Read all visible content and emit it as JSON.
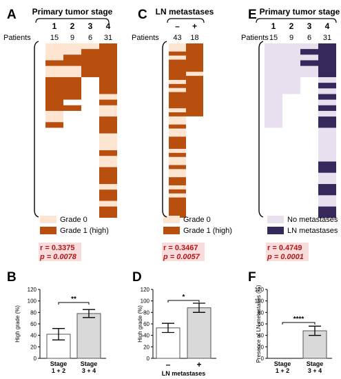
{
  "colors": {
    "grade0": "#fde5d2",
    "grade1": "#b84f0f",
    "nomet": "#e9e0ef",
    "met": "#37285c",
    "stat_bg": "#f8dcdc",
    "stat_text": "#b01818",
    "bar_light": "#d9d9d9"
  },
  "patients_label": "Patients",
  "chart_data": [
    {
      "type": "heatmap",
      "panel": "A",
      "title": "Primary tumor stage",
      "columns": [
        "1",
        "2",
        "3",
        "4"
      ],
      "counts": [
        "15",
        "9",
        "6",
        "31"
      ],
      "n_rows": 31,
      "high_fill_runs": [
        [
          [
            3,
            4
          ],
          [
            6,
            12
          ],
          [
            14,
            15
          ]
        ],
        [
          [
            2,
            4
          ],
          [
            6,
            10
          ],
          [
            11,
            12
          ]
        ],
        [
          [
            1,
            6
          ]
        ],
        [
          [
            0,
            9
          ],
          [
            10,
            11
          ],
          [
            13,
            16
          ],
          [
            19,
            20
          ],
          [
            22,
            25
          ],
          [
            26,
            28
          ],
          [
            29,
            31
          ]
        ]
      ],
      "legend": [
        "Grade 0",
        "Grade 1 (high)"
      ],
      "r": "r = 0.3375",
      "p": "p = 0.0078"
    },
    {
      "type": "heatmap",
      "panel": "C",
      "title": "LN metastases",
      "columns": [
        "–",
        "+"
      ],
      "counts": [
        "43",
        "18"
      ],
      "n_rows": 43,
      "high_fill_runs": [
        [
          [
            2,
            3
          ],
          [
            4,
            9
          ],
          [
            10,
            11
          ],
          [
            12,
            16
          ],
          [
            17,
            18
          ],
          [
            20,
            21
          ],
          [
            23,
            26
          ],
          [
            27,
            28
          ],
          [
            30,
            31
          ],
          [
            33,
            35
          ],
          [
            36,
            37
          ],
          [
            38,
            43
          ]
        ],
        [
          [
            0,
            7
          ],
          [
            8,
            18
          ]
        ]
      ],
      "legend": [
        "Grade 0",
        "Grade 1 (high)"
      ],
      "r": "r = 0.3467",
      "p": "p = 0.0057"
    },
    {
      "type": "heatmap",
      "panel": "E",
      "title": "Primary tumor stage",
      "columns": [
        "1",
        "2",
        "3",
        "4"
      ],
      "counts": [
        "15",
        "9",
        "6",
        "31"
      ],
      "n_rows": 31,
      "high_fill_runs": [
        [],
        [],
        [
          [
            1,
            2
          ],
          [
            3,
            4
          ]
        ],
        [
          [
            0,
            6
          ],
          [
            7,
            8
          ],
          [
            9,
            10
          ],
          [
            11,
            12
          ],
          [
            13,
            15
          ],
          [
            21,
            23
          ],
          [
            25,
            27
          ],
          [
            29,
            31
          ]
        ]
      ],
      "legend": [
        "No metastases",
        "LN metastases"
      ],
      "r": "r = 0.4749",
      "p": "p = 0.0001"
    },
    {
      "type": "bar",
      "panel": "B",
      "categories": [
        "Stage\n1 + 2",
        "Stage\n3 + 4"
      ],
      "values": [
        42,
        78
      ],
      "errors": [
        10,
        7
      ],
      "ylabel": "High grade (%)",
      "ylim": [
        0,
        120
      ],
      "yticks": [
        0,
        20,
        40,
        60,
        80,
        100,
        120
      ],
      "significance": "**"
    },
    {
      "type": "bar",
      "panel": "D",
      "categories": [
        "–",
        "+"
      ],
      "values": [
        53,
        88
      ],
      "errors": [
        8,
        8
      ],
      "ylabel": "High grade (%)",
      "xlabel": "LN metastases",
      "ylim": [
        0,
        120
      ],
      "yticks": [
        0,
        20,
        40,
        60,
        80,
        100,
        120
      ],
      "significance": "*"
    },
    {
      "type": "bar",
      "panel": "F",
      "categories": [
        "Stage\n1 + 2",
        "Stage\n3 + 4"
      ],
      "values": [
        0,
        48
      ],
      "errors": [
        0,
        8
      ],
      "ylabel": "Presence of LN metastases (%)",
      "ylim": [
        0,
        120
      ],
      "yticks": [
        0,
        20,
        40,
        60,
        80,
        100,
        120
      ],
      "significance": "****"
    }
  ]
}
